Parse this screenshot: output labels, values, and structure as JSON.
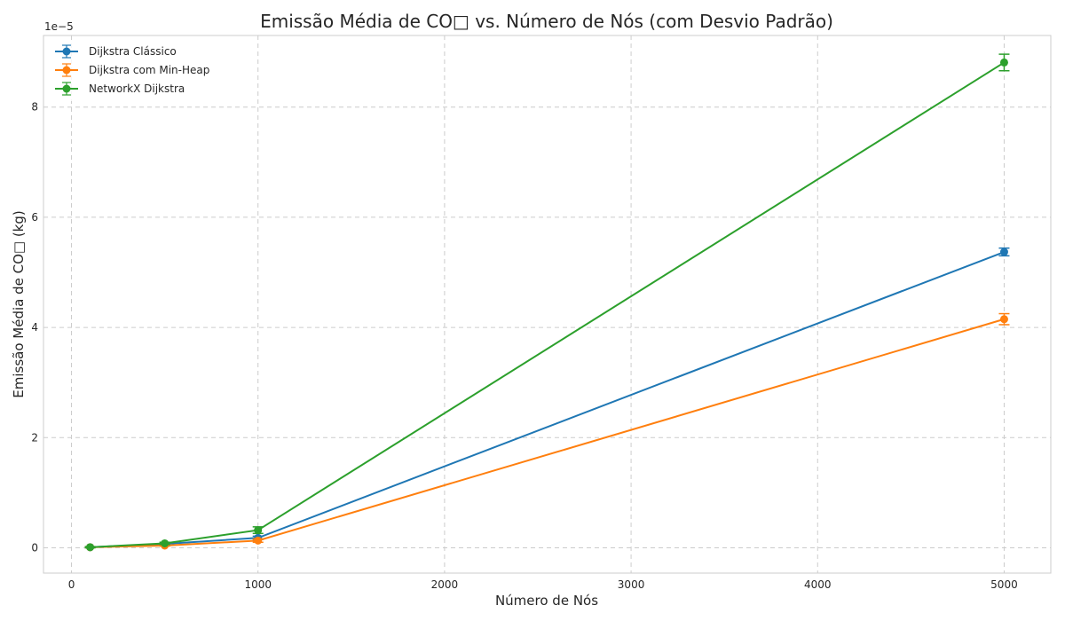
{
  "chart_data": {
    "type": "line",
    "title": "Emissão Média de CO□ vs. Número de Nós (com Desvio Padrão)",
    "xlabel": "Número de Nós",
    "ylabel": "Emissão Média de CO□ (kg)",
    "y_offset_label": "1e−5",
    "xlim": [
      -150,
      5250
    ],
    "ylim": [
      -0.46,
      9.3
    ],
    "y_scale_factor": "1e-5",
    "x_ticks": [
      0,
      1000,
      2000,
      3000,
      4000,
      5000
    ],
    "y_ticks": [
      0,
      2,
      4,
      6,
      8
    ],
    "grid": true,
    "legend_position": "top-left",
    "x": [
      100,
      500,
      1000,
      5000
    ],
    "series": [
      {
        "name": "Dijkstra Clássico",
        "color": "#1f77b4",
        "values": [
          0.01,
          0.07,
          0.18,
          5.37
        ],
        "errors": [
          0.01,
          0.01,
          0.03,
          0.07
        ]
      },
      {
        "name": "Dijkstra com Min-Heap",
        "color": "#ff7f0e",
        "values": [
          0.01,
          0.04,
          0.13,
          4.15
        ],
        "errors": [
          0.01,
          0.01,
          0.03,
          0.1
        ]
      },
      {
        "name": "NetworkX Dijkstra",
        "color": "#2ca02c",
        "values": [
          0.01,
          0.08,
          0.32,
          8.81
        ],
        "errors": [
          0.01,
          0.02,
          0.06,
          0.15
        ]
      }
    ]
  }
}
